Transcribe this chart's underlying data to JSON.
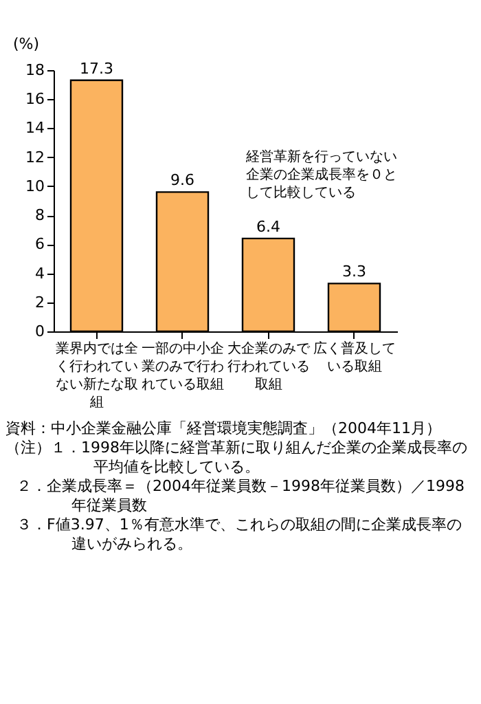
{
  "chart_data": {
    "type": "bar",
    "ylabel": "(%)",
    "categories": [
      "業界内では全く行われていない新たな取組",
      "一部の中小企業のみで行われている取組",
      "大企業のみで行われている取組",
      "広く普及している取組"
    ],
    "values": [
      17.3,
      9.6,
      6.4,
      3.3
    ],
    "color": "#fbb35f",
    "ylim": [
      0,
      18
    ],
    "yticks": [
      0,
      2,
      4,
      6,
      8,
      10,
      12,
      14,
      16,
      18
    ],
    "grid": false,
    "data_labels": true,
    "annotations": [
      "経営革新を行っていない企業の企業成長率を０として比較している",
      "資料：中小企業金融公庫「経営環境実態調査」（2004年11月）",
      "（注）１．1998年以降に経営革新に取り組んだ企業の企業成長率の平均値を比較している。",
      "２．企業成長率＝（2004年従業員数－1998年従業員数）／1998年従業員数",
      "３．F値3.97、1％有意水準で、これらの取組の間に企業成長率の違いがみられる。"
    ]
  }
}
